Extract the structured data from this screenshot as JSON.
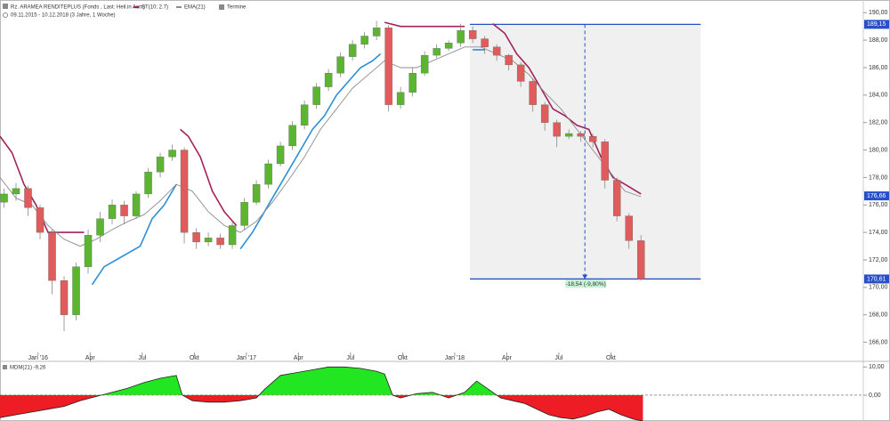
{
  "chart_data": [
    {
      "type": "candlestick",
      "title": "Rz. ARAMEA RENDITEPLUS (Fonds , Last: Heil.in Asm)",
      "subtitle": "09.11.2015 - 10.12.2018 (3 Jahre, 1 Woche)",
      "events_label": "Termine",
      "xlim": [
        0,
        215.5
      ],
      "xticks": [
        {
          "value": 9.5,
          "label": "Jan '16"
        },
        {
          "value": 22.5,
          "label": "Apr"
        },
        {
          "value": 35.5,
          "label": "Jul"
        },
        {
          "value": 48.5,
          "label": "Okt"
        },
        {
          "value": 61.5,
          "label": "Jan '17"
        },
        {
          "value": 74.5,
          "label": "Apr"
        },
        {
          "value": 87.5,
          "label": "Jul"
        },
        {
          "value": 100.5,
          "label": "Okt"
        },
        {
          "value": 113.5,
          "label": "Jan '18"
        },
        {
          "value": 126.5,
          "label": "Apr"
        },
        {
          "value": 139.5,
          "label": "Jul"
        },
        {
          "value": 152.5,
          "label": "Okt"
        }
      ],
      "ylim": [
        165,
        190.6
      ],
      "yticks": [
        {
          "value": 166,
          "label": "166,00"
        },
        {
          "value": 168,
          "label": "168,00"
        },
        {
          "value": 170,
          "label": "170,00"
        },
        {
          "value": 172,
          "label": "172,00"
        },
        {
          "value": 174,
          "label": "174,00"
        },
        {
          "value": 176,
          "label": "176,00"
        },
        {
          "value": 178,
          "label": "178,00"
        },
        {
          "value": 180,
          "label": "180,00"
        },
        {
          "value": 182,
          "label": "182,00"
        },
        {
          "value": 184,
          "label": "184,00"
        },
        {
          "value": 186,
          "label": "186,00"
        },
        {
          "value": 188,
          "label": "188,00"
        },
        {
          "value": 190,
          "label": "190,00"
        }
      ],
      "up_color": "#5cb531",
      "down_color": "#e05c5c",
      "x": [
        1,
        4,
        7,
        10,
        13,
        16,
        19,
        22,
        25,
        28,
        31,
        34,
        37,
        40,
        43,
        46,
        49,
        52,
        55,
        58,
        61,
        64,
        67,
        70,
        73,
        76,
        79,
        82,
        85,
        88,
        91,
        94,
        97,
        100,
        103,
        106,
        109,
        112,
        115,
        118,
        121,
        124,
        127,
        130,
        133,
        136,
        139,
        142,
        145,
        148,
        151,
        154,
        157,
        160
      ],
      "open": [
        176.2,
        176.8,
        177.2,
        175.8,
        174.0,
        170.5,
        168.0,
        171.5,
        173.8,
        175,
        176,
        175.2,
        176.8,
        178.4,
        179.5,
        180,
        174,
        173.3,
        173.6,
        173.1,
        174.5,
        176.2,
        177.5,
        179,
        180.3,
        181.8,
        183.3,
        184.6,
        185.6,
        186.8,
        187.7,
        188.3,
        188.9,
        183.3,
        184.2,
        185.6,
        186.9,
        187.4,
        187.8,
        188.7,
        188.1,
        187.5,
        186.9,
        186.2,
        185,
        183.3,
        182,
        181,
        181.2,
        181,
        180.6,
        177.8,
        175.2,
        173.4
      ],
      "close": [
        176.8,
        177.2,
        175.8,
        174.0,
        170.5,
        168.0,
        171.5,
        173.8,
        175,
        176,
        175.2,
        176.8,
        178.4,
        179.5,
        180,
        174,
        173.3,
        173.6,
        173.1,
        174.5,
        176.2,
        177.5,
        179,
        180.3,
        181.8,
        183.3,
        184.6,
        185.6,
        186.8,
        187.7,
        188.3,
        188.9,
        183.3,
        184.2,
        185.6,
        186.9,
        187.4,
        187.8,
        188.7,
        188.1,
        187.5,
        186.9,
        186.2,
        185,
        183.3,
        182,
        181,
        181.2,
        181,
        180.6,
        177.8,
        175.2,
        173.4,
        170.6
      ],
      "high": [
        177.2,
        177.6,
        177.4,
        176,
        174.2,
        170.8,
        171.8,
        174.2,
        175.5,
        176.4,
        176.3,
        177,
        178.7,
        179.8,
        180.4,
        180.2,
        174.3,
        174,
        173.9,
        174.8,
        176.5,
        177.8,
        179.3,
        180.6,
        182.1,
        183.6,
        184.9,
        185.9,
        187.1,
        188,
        188.6,
        189.4,
        189.1,
        184.6,
        186,
        187.2,
        187.7,
        188,
        189.2,
        189,
        188.3,
        187.7,
        187,
        186.4,
        185.2,
        183.5,
        182.2,
        181.5,
        181.4,
        181.2,
        180.8,
        178,
        175.4,
        173.8
      ],
      "low": [
        175.8,
        176.3,
        175.2,
        173.5,
        169.5,
        166.8,
        167.6,
        171,
        173.3,
        174.6,
        174.6,
        175,
        176.5,
        178,
        179.2,
        173.2,
        172.8,
        173,
        172.8,
        172.8,
        174.2,
        176,
        177.2,
        178.8,
        180,
        181.5,
        183,
        184.3,
        185.3,
        186.5,
        187.4,
        188,
        182.8,
        183,
        183.9,
        185.4,
        186.7,
        187.2,
        187.5,
        187.8,
        187,
        186.5,
        185.8,
        184.6,
        182.8,
        181.4,
        180.2,
        180.8,
        180.6,
        180.2,
        177.2,
        174.8,
        172.8,
        170.5
      ],
      "series": [
        {
          "name": "ST(10; 2.7)",
          "color": "#a3215c",
          "x": [
            0,
            3,
            6,
            9,
            12,
            15,
            18,
            21,
            23,
            45,
            47,
            50,
            53,
            56,
            59,
            61,
            96,
            100,
            104,
            108,
            112,
            116,
            118,
            123,
            126,
            129,
            132,
            135,
            138,
            141,
            144,
            147,
            150,
            153,
            156,
            160
          ],
          "values": [
            181,
            179.8,
            177.5,
            176,
            174,
            174,
            174,
            174,
            null,
            181.5,
            181,
            179.5,
            177,
            175.5,
            174.5,
            null,
            189.3,
            189,
            189,
            189,
            189,
            189,
            null,
            189.2,
            188.5,
            187,
            186,
            184.5,
            183,
            182.5,
            181.8,
            181.5,
            179.5,
            178,
            177.5,
            176.8
          ]
        },
        {
          "color": "#2b8fd6",
          "x": [
            23,
            26,
            29,
            32,
            35,
            38,
            41,
            44,
            46,
            60,
            63,
            66,
            69,
            72,
            75,
            78,
            81,
            84,
            87,
            90,
            93,
            95,
            97,
            118,
            121,
            123
          ],
          "values": [
            170.2,
            171.5,
            172,
            172.5,
            173,
            175,
            176,
            177.5,
            null,
            172.8,
            174,
            175.5,
            177,
            178.5,
            180,
            181.5,
            182.5,
            184,
            185,
            186,
            186.5,
            187,
            null,
            187.3,
            187.3,
            null
          ]
        },
        {
          "name": "EMA(21)",
          "color": "#8c8c8c",
          "x": [
            0,
            4,
            8,
            12,
            16,
            20,
            24,
            28,
            32,
            36,
            40,
            44,
            48,
            52,
            56,
            60,
            64,
            68,
            72,
            76,
            80,
            84,
            88,
            92,
            96,
            100,
            104,
            108,
            112,
            116,
            120,
            124,
            128,
            132,
            136,
            140,
            144,
            148,
            152,
            156,
            160
          ],
          "values": [
            178,
            176.5,
            176,
            174.5,
            173.5,
            173,
            173.5,
            174.2,
            174.8,
            175.3,
            176.3,
            177.5,
            177,
            175.5,
            174.5,
            174,
            174.8,
            176.2,
            177.8,
            179.5,
            181.5,
            183,
            184.5,
            185.5,
            186.5,
            186,
            186,
            186.5,
            187,
            187.5,
            187.5,
            187,
            186.5,
            185.5,
            184.2,
            183,
            181.5,
            180,
            178.5,
            177,
            176.6
          ]
        }
      ],
      "price_labels": [
        {
          "value": 189.15,
          "label": "189,15"
        },
        {
          "value": 176.66,
          "label": "176,66"
        },
        {
          "value": 170.61,
          "label": "170,61"
        }
      ],
      "measure": {
        "x": [
          117.3,
          174.9
        ],
        "y": [
          189.15,
          170.61
        ],
        "marker_x": 146,
        "label": "-18,54 (-9,80%)"
      }
    },
    {
      "type": "area",
      "title": "MDM(21) -9,26",
      "pos_color": "#22e622",
      "neg_color": "#ee1c25",
      "xlim": [
        0,
        215.5
      ],
      "ylim": [
        -9.2,
        12
      ],
      "yticks": [
        {
          "value": 0,
          "label": "0,00"
        },
        {
          "value": 10,
          "label": "10,00"
        }
      ],
      "x": [
        0,
        4,
        8,
        12,
        16,
        20,
        24,
        28,
        32,
        36,
        40,
        44,
        45.5,
        48,
        52,
        56,
        60,
        64,
        66,
        70,
        74,
        78,
        82,
        86,
        90,
        94,
        96,
        98,
        100,
        104,
        108,
        112,
        116,
        119,
        122,
        125,
        128,
        131,
        134,
        137,
        140,
        143,
        146,
        149,
        152,
        155,
        158,
        160.5
      ],
      "values": [
        -8,
        -7,
        -6,
        -5,
        -4,
        -2,
        -0.5,
        1,
        2.5,
        4.5,
        6,
        7,
        0,
        -2,
        -2.5,
        -2.5,
        -2,
        -1,
        2,
        7,
        8,
        9,
        10,
        10,
        9.5,
        8.5,
        7.5,
        0,
        -1,
        0.5,
        1,
        -1,
        1,
        5,
        2,
        -1,
        -2,
        -3,
        -5,
        -7,
        -8,
        -8.5,
        -7.5,
        -6,
        -5,
        -7,
        -8.5,
        -9.26
      ]
    }
  ]
}
